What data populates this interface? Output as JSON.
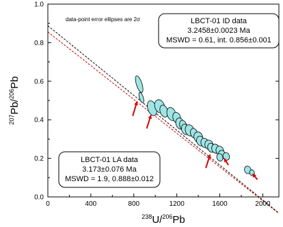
{
  "chart_data": {
    "type": "scatter",
    "x": {
      "label_sup": "238",
      "label_main": "U/",
      "label_sup2": "206",
      "label_end": "Pb",
      "range": [
        0,
        2150
      ],
      "ticks": [
        "0",
        "400",
        "800",
        "1200",
        "1600",
        "2000"
      ]
    },
    "y": {
      "label_sup": "207",
      "label_main": "Pb/",
      "label_sup2": "206",
      "label_end": "Pb",
      "range": [
        0.0,
        1.0
      ],
      "ticks": [
        "0.0",
        "0.2",
        "0.4",
        "0.6",
        "0.8",
        "1.0"
      ]
    },
    "note": "data-point error ellipses are 2σ",
    "id_box": {
      "line1": "LBCT-01 ID data",
      "line2": "3.2458±0.0023 Ma",
      "line3": "MSWD = 0.61, int. 0.856±0.001"
    },
    "la_box": {
      "line1": "LBCT-01 LA data",
      "line2": "3.173±0.076 Ma",
      "line3": "MSWD = 1.9, 0.888±0.012"
    },
    "lines": [
      {
        "style": "dashed",
        "color": "#cc0000",
        "intercept": 0.856,
        "slope": -0.000438
      },
      {
        "style": "dashed",
        "color": "#000000",
        "intercept": 0.888,
        "slope": -0.000452
      }
    ],
    "ellipses": [
      {
        "x": 850,
        "y": 0.585,
        "rx": 26,
        "ry": 0.045
      },
      {
        "x": 870,
        "y": 0.515,
        "rx": 18,
        "ry": 0.028
      },
      {
        "x": 970,
        "y": 0.46,
        "rx": 40,
        "ry": 0.04
      },
      {
        "x": 1040,
        "y": 0.47,
        "rx": 45,
        "ry": 0.035
      },
      {
        "x": 1080,
        "y": 0.445,
        "rx": 35,
        "ry": 0.032
      },
      {
        "x": 1150,
        "y": 0.43,
        "rx": 40,
        "ry": 0.035
      },
      {
        "x": 1200,
        "y": 0.41,
        "rx": 35,
        "ry": 0.03
      },
      {
        "x": 1230,
        "y": 0.38,
        "rx": 38,
        "ry": 0.03
      },
      {
        "x": 1260,
        "y": 0.37,
        "rx": 32,
        "ry": 0.028
      },
      {
        "x": 1280,
        "y": 0.35,
        "rx": 35,
        "ry": 0.028
      },
      {
        "x": 1320,
        "y": 0.345,
        "rx": 40,
        "ry": 0.03
      },
      {
        "x": 1360,
        "y": 0.33,
        "rx": 32,
        "ry": 0.026
      },
      {
        "x": 1400,
        "y": 0.31,
        "rx": 40,
        "ry": 0.028
      },
      {
        "x": 1420,
        "y": 0.29,
        "rx": 35,
        "ry": 0.026
      },
      {
        "x": 1460,
        "y": 0.28,
        "rx": 35,
        "ry": 0.025
      },
      {
        "x": 1500,
        "y": 0.27,
        "rx": 38,
        "ry": 0.025
      },
      {
        "x": 1520,
        "y": 0.255,
        "rx": 32,
        "ry": 0.024
      },
      {
        "x": 1560,
        "y": 0.25,
        "rx": 35,
        "ry": 0.024
      },
      {
        "x": 1600,
        "y": 0.24,
        "rx": 35,
        "ry": 0.024
      },
      {
        "x": 1620,
        "y": 0.22,
        "rx": 32,
        "ry": 0.022
      },
      {
        "x": 1660,
        "y": 0.21,
        "rx": 30,
        "ry": 0.02
      },
      {
        "x": 1600,
        "y": 0.205,
        "rx": 28,
        "ry": 0.02
      },
      {
        "x": 1860,
        "y": 0.14,
        "rx": 30,
        "ry": 0.02
      },
      {
        "x": 1900,
        "y": 0.125,
        "rx": 22,
        "ry": 0.016
      }
    ],
    "arrows": [
      {
        "x1": 790,
        "y1": 0.42,
        "x2": 830,
        "y2": 0.495
      },
      {
        "x1": 920,
        "y1": 0.355,
        "x2": 960,
        "y2": 0.425
      },
      {
        "x1": 1470,
        "y1": 0.15,
        "x2": 1510,
        "y2": 0.22
      },
      {
        "x1": 1680,
        "y1": 0.165,
        "x2": 1640,
        "y2": 0.2
      },
      {
        "x1": 1950,
        "y1": 0.09,
        "x2": 1905,
        "y2": 0.12
      }
    ]
  }
}
